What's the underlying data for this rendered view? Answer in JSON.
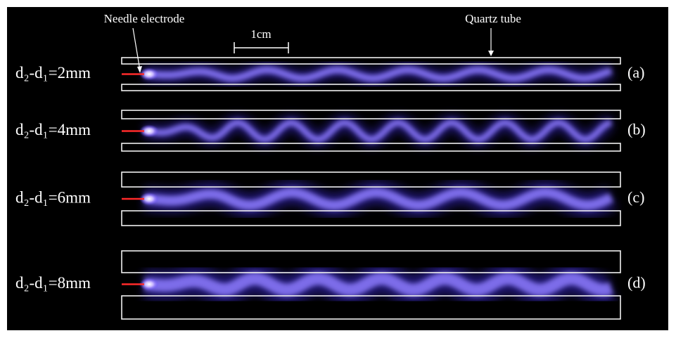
{
  "annotations": {
    "needle": "Needle electrode",
    "tube": "Quartz tube",
    "scale": "1cm"
  },
  "panels": [
    {
      "label": "d₂-d₁=2mm",
      "tag": "(a)"
    },
    {
      "label": "d₂-d₁=4mm",
      "tag": "(b)"
    },
    {
      "label": "d₂-d₁=6mm",
      "tag": "(c)"
    },
    {
      "label": "d₂-d₁=8mm",
      "tag": "(d)"
    }
  ]
}
